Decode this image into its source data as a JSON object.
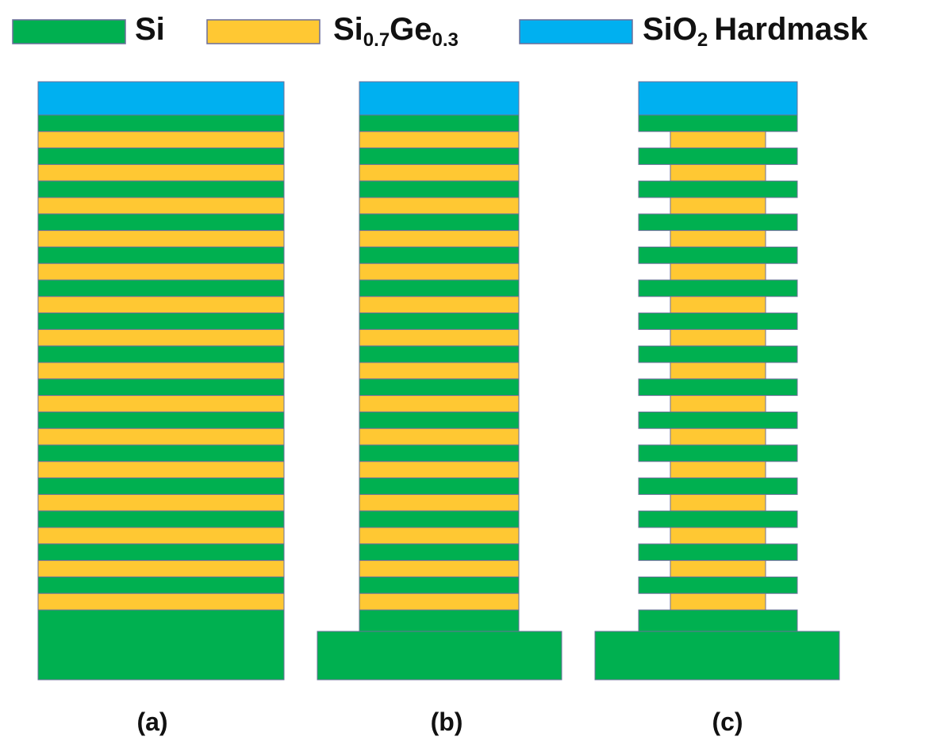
{
  "colors": {
    "si": "#00b050",
    "sige": "#ffc833",
    "sio2": "#00b0f0",
    "stroke": "#6b6f9a"
  },
  "legend": {
    "si": {
      "label": "Si"
    },
    "sige": {
      "base1": "Si",
      "sub1": "0.7",
      "base2": "Ge",
      "sub2": "0.3"
    },
    "sio2": {
      "base1": "SiO",
      "sub1": "2",
      "rest": "Hardmask"
    }
  },
  "stack": {
    "si_sige_pairs": 15
  },
  "panels": [
    {
      "id": "a",
      "label": "(a)"
    },
    {
      "id": "b",
      "label": "(b)"
    },
    {
      "id": "c",
      "label": "(c)"
    }
  ]
}
